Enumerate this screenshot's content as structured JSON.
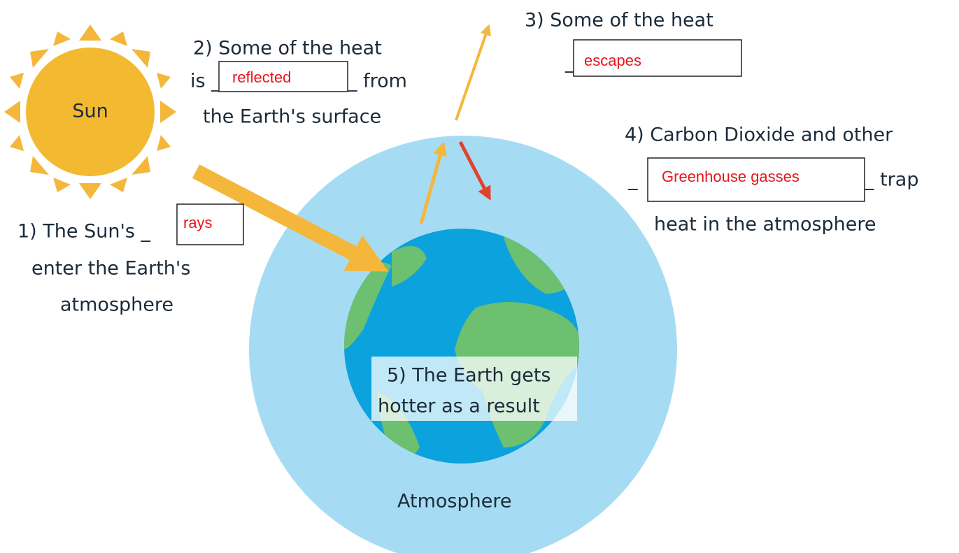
{
  "sun": {
    "label": "Sun"
  },
  "steps": [
    {
      "lines": [
        "1) The Sun's _",
        "enter the Earth's",
        "atmosphere"
      ],
      "answer": "rays"
    },
    {
      "lines": [
        "2) Some of the heat",
        "is _",
        "_ from",
        "the Earth's surface"
      ],
      "answer": "reflected"
    },
    {
      "lines": [
        "3) Some of the heat",
        "_"
      ],
      "answer": "escapes"
    },
    {
      "lines": [
        "4) Carbon Dioxide and other",
        "_",
        "_ trap",
        "heat in the atmosphere"
      ],
      "answer": "Greenhouse gasses"
    },
    {
      "lines": [
        "5) The Earth gets",
        "hotter as a result"
      ]
    }
  ],
  "atmosphere": {
    "label": "Atmosphere"
  }
}
